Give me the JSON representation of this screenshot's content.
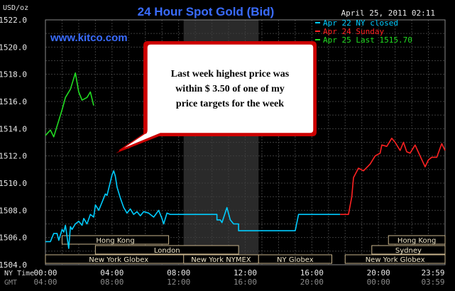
{
  "chart_data": {
    "type": "line",
    "title": "24 Hour Spot Gold (Bid)",
    "date_label": "April 25, 2011 02:11",
    "ylabel": "USD/oz",
    "website": "www.kitco.com",
    "ylim": [
      1504,
      1522
    ],
    "y_ticks": [
      "1522.0",
      "1520.0",
      "1518.0",
      "1516.0",
      "1514.0",
      "1512.0",
      "1510.0",
      "1508.0",
      "1506.0",
      "1504.0"
    ],
    "x_ticks_ny": [
      "00:00",
      "04:00",
      "08:00",
      "12:00",
      "16:00",
      "20:00",
      "23:59"
    ],
    "x_ticks_gmt": [
      "04:00",
      "08:00",
      "12:00",
      "16:00",
      "20:00",
      "00:00",
      "03:59"
    ],
    "x_axis_labels": {
      "ny": "NY Time",
      "gmt": "GMT"
    },
    "legend": [
      {
        "name": "Apr 22 NY closed",
        "color": "#00ccff"
      },
      {
        "name": "Apr 24 Sunday",
        "color": "#ff2222"
      },
      {
        "name": "Apr 25 Last 1515.70",
        "color": "#22dd22"
      }
    ],
    "annotation": "Last week highest price was within $ 3.50 of one of my price targets for the week",
    "markets": [
      {
        "name": "Hong Kong",
        "start": 1.0,
        "end": 7.4,
        "row": 0
      },
      {
        "name": "New York Globex",
        "start": 0.0,
        "end": 8.8,
        "row": 2
      },
      {
        "name": "London",
        "start": 3.0,
        "end": 11.6,
        "row": 1
      },
      {
        "name": "New York NYMEX",
        "start": 8.3,
        "end": 12.8,
        "row": 2
      },
      {
        "name": "NY Globex",
        "start": 12.8,
        "end": 17.2,
        "row": 2
      },
      {
        "name": "New York Globex",
        "start": 18.0,
        "end": 24.0,
        "row": 2
      },
      {
        "name": "Sydney",
        "start": 19.6,
        "end": 24.0,
        "row": 1
      },
      {
        "name": "Hong Kong",
        "start": 20.6,
        "end": 24.0,
        "row": 0
      }
    ],
    "series": [
      {
        "name": "Apr 22 NY closed",
        "color": "#00ccff",
        "x": [
          0.0,
          0.3,
          0.5,
          0.7,
          0.8,
          1.0,
          1.1,
          1.2,
          1.4,
          1.5,
          1.6,
          1.8,
          2.0,
          2.2,
          2.3,
          2.5,
          2.7,
          2.9,
          3.0,
          3.2,
          3.4,
          3.6,
          3.7,
          3.9,
          4.0,
          4.1,
          4.2,
          4.3,
          4.5,
          4.7,
          4.9,
          5.1,
          5.3,
          5.5,
          5.7,
          5.9,
          6.2,
          6.5,
          6.8,
          7.0,
          7.1,
          7.3,
          7.5,
          7.7,
          8.0,
          10.3,
          10.3,
          10.5,
          10.6,
          10.9,
          11.1,
          11.3,
          11.6,
          11.6,
          12.3,
          14.0,
          15.0,
          15.2,
          15.5,
          17.0,
          17.7
        ],
        "y": [
          1505.7,
          1505.7,
          1506.3,
          1506.3,
          1505.8,
          1506.6,
          1506.4,
          1506.9,
          1505.2,
          1506.8,
          1506.6,
          1507.0,
          1507.2,
          1506.9,
          1507.4,
          1507.0,
          1507.7,
          1507.5,
          1508.4,
          1508.0,
          1508.6,
          1509.2,
          1509.1,
          1510.1,
          1510.6,
          1510.9,
          1510.5,
          1509.7,
          1508.9,
          1508.2,
          1507.8,
          1508.1,
          1507.7,
          1507.9,
          1507.6,
          1507.9,
          1507.8,
          1507.5,
          1508.0,
          1507.4,
          1507.0,
          1507.8,
          1507.7,
          1507.7,
          1507.7,
          1507.7,
          1507.3,
          1507.3,
          1507.1,
          1508.2,
          1507.3,
          1507.0,
          1507.0,
          1506.5,
          1506.5,
          1506.5,
          1506.5,
          1507.7,
          1507.7,
          1507.7,
          1507.7
        ]
      },
      {
        "name": "Apr 24 Sunday",
        "color": "#ff2222",
        "x": [
          17.7,
          18.2,
          18.4,
          18.5,
          18.8,
          19.1,
          19.5,
          19.8,
          20.1,
          20.2,
          20.5,
          20.8,
          21.0,
          21.3,
          21.5,
          21.7,
          21.9,
          22.2,
          22.5,
          22.8,
          23.0,
          23.2,
          23.5,
          23.8,
          24.0
        ],
        "y": [
          1507.7,
          1507.7,
          1509.0,
          1510.4,
          1511.1,
          1510.9,
          1511.4,
          1512.0,
          1512.2,
          1512.8,
          1512.7,
          1513.3,
          1513.0,
          1512.4,
          1513.0,
          1512.3,
          1512.2,
          1512.8,
          1512.0,
          1511.2,
          1511.7,
          1511.9,
          1511.9,
          1512.9,
          1512.4
        ]
      },
      {
        "name": "Apr 25 Last 1515.70",
        "color": "#22dd22",
        "x": [
          0.0,
          0.3,
          0.5,
          0.8,
          1.0,
          1.2,
          1.5,
          1.8,
          2.0,
          2.2,
          2.5,
          2.7,
          2.9
        ],
        "y": [
          1513.5,
          1513.9,
          1513.4,
          1514.6,
          1515.4,
          1516.3,
          1516.9,
          1518.1,
          1516.7,
          1516.1,
          1516.3,
          1516.7,
          1515.7
        ]
      }
    ]
  }
}
